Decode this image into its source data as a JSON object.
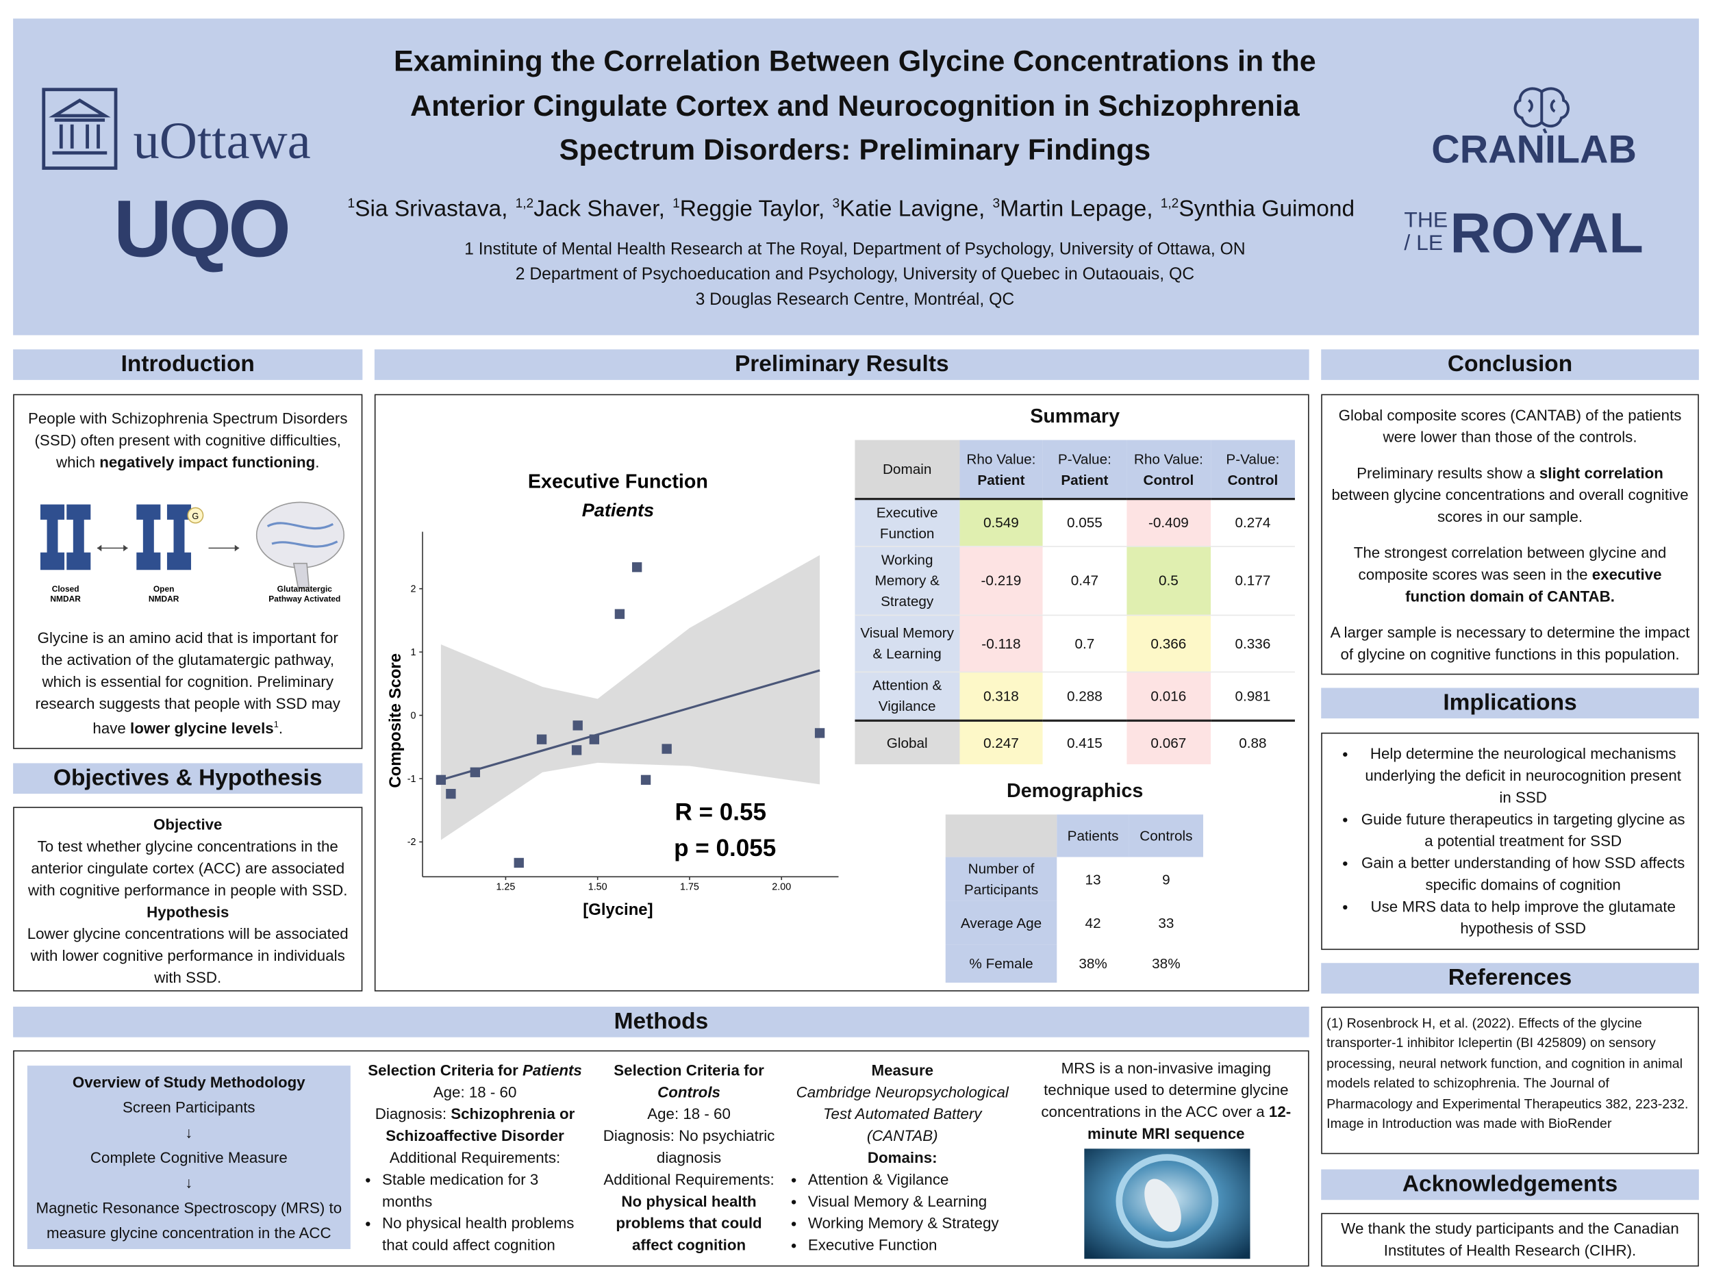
{
  "header": {
    "title_lines": [
      "Examining the Correlation Between Glycine Concentrations in the",
      "Anterior Cingulate Cortex and Neurocognition in Schizophrenia",
      "Spectrum Disorders: Preliminary Findings"
    ],
    "authors": [
      {
        "sup": "1",
        "name": "Sia Srivastava,"
      },
      {
        "sup": "1,2",
        "name": "Jack Shaver,"
      },
      {
        "sup": "1",
        "name": "Reggie Taylor,"
      },
      {
        "sup": "3",
        "name": "Katie Lavigne,"
      },
      {
        "sup": "3",
        "name": "Martin Lepage,"
      },
      {
        "sup": "1,2",
        "name": "Synthia Guimond"
      }
    ],
    "affiliations": [
      "1 Institute of Mental Health Research at The Royal, Department of Psychology, University of Ottawa, ON",
      "2 Department of Psychoeducation and Psychology, University of Quebec in Outaouais, QC",
      "3 Douglas Research Centre, Montréal, QC"
    ],
    "logos": {
      "uottawa": "uOttawa",
      "uqo": "UQO",
      "cranilab": "CRANILAB",
      "royal_prefix": [
        "THE",
        "/ LE"
      ],
      "royal": "ROYAL"
    }
  },
  "introduction": {
    "heading": "Introduction",
    "paragraph1": [
      "People with Schizophrenia Spectrum Disorders (SSD) often present with cognitive difficulties, which ",
      "negatively impact functioning",
      "."
    ],
    "figure_badge": "G",
    "figure_labels": [
      [
        "Closed",
        "NMDAR"
      ],
      [
        "Open",
        "NMDAR"
      ],
      [
        "Glutamatergic",
        "Pathway Activated"
      ]
    ],
    "paragraph2": [
      "Glycine is an amino acid that is important for the activation of the glutamatergic pathway, which is essential for cognition. Preliminary research suggests that people with SSD may have ",
      "lower glycine levels",
      "1",
      "."
    ]
  },
  "objectives": {
    "heading": "Objectives & Hypothesis",
    "objective_title": "Objective",
    "objective_text": "To test whether glycine concentrations in the anterior cingulate cortex (ACC) are associated with cognitive performance in people with SSD.",
    "hypothesis_title": "Hypothesis",
    "hypothesis_text": "Lower glycine concentrations will be associated with lower cognitive performance in individuals with SSD."
  },
  "results": {
    "heading": "Preliminary Results",
    "summary": {
      "title": "Summary",
      "header": [
        [
          "Domain"
        ],
        [
          "Rho Value:",
          "Patient"
        ],
        [
          "P-Value:",
          "Patient"
        ],
        [
          "Rho Value:",
          "Control"
        ],
        [
          "P-Value:",
          "Control"
        ]
      ],
      "rows": [
        [
          "Executive Function",
          "0.549",
          "0.055",
          "-0.409",
          "0.274"
        ],
        [
          "Working Memory & Strategy",
          "-0.219",
          "0.47",
          "0.5",
          "0.177"
        ],
        [
          "Visual Memory & Learning",
          "-0.118",
          "0.7",
          "0.366",
          "0.336"
        ],
        [
          "Attention & Vigilance",
          "0.318",
          "0.288",
          "0.016",
          "0.981"
        ],
        [
          "Global",
          "0.247",
          "0.415",
          "0.067",
          "0.88"
        ]
      ],
      "rho_colors": [
        [
          "#e0efb0",
          "#fde3e3"
        ],
        [
          "#fde3e3",
          "#e0efb0"
        ],
        [
          "#fde3e3",
          "#fdf8c8"
        ],
        [
          "#fdf8c8",
          "#fde3e3"
        ],
        [
          "#fdf8c8",
          "#fde3e3"
        ]
      ]
    },
    "demographics": {
      "title": "Demographics",
      "header": [
        "Patients",
        "Controls"
      ],
      "rows": [
        [
          "Number of Participants",
          "13",
          "9"
        ],
        [
          "Average Age",
          "42",
          "33"
        ],
        [
          "% Female",
          "38%",
          "38%"
        ]
      ]
    }
  },
  "chart_data": {
    "type": "scatter",
    "title": "Executive Function",
    "subtitle": "Patients",
    "x_label": "[Glycine]",
    "y_label": "Composite Score",
    "x": [
      1.074,
      1.101,
      1.167,
      1.286,
      1.348,
      1.446,
      1.443,
      1.491,
      1.56,
      1.607,
      1.631,
      1.688,
      2.104
    ],
    "y": [
      -1.02,
      -1.24,
      -0.9,
      -2.33,
      -0.38,
      -0.16,
      -0.55,
      -0.38,
      1.6,
      2.34,
      -1.02,
      -0.53,
      -0.28
    ],
    "color": "#4a5678",
    "xlim": [
      1.024,
      2.155
    ],
    "ylim": [
      -2.55,
      2.9
    ],
    "xticks": [
      1.25,
      {
        "value": 1.5,
        "label": "1.50"
      },
      1.75,
      {
        "value": 2,
        "label": "2.00"
      }
    ],
    "yticks": [
      -2,
      -1,
      0,
      1,
      2
    ],
    "fit": {
      "x": [
        1.074,
        2.104
      ],
      "y": [
        -1.02,
        0.71
      ],
      "color": "#4a5678"
    },
    "band": {
      "x": [
        1.074,
        1.35,
        1.5,
        1.75,
        2.104
      ],
      "upper": [
        1.12,
        0.45,
        0.26,
        1.38,
        2.53
      ],
      "lower": [
        -1.97,
        -0.9,
        -0.75,
        -0.8,
        -1.09
      ],
      "color": "#dcdcdc"
    },
    "annotations": [
      "R = 0.55",
      "p = 0.055"
    ]
  },
  "conclusion": {
    "heading": "Conclusion",
    "p1": "Global composite scores (CANTAB) of the patients were lower than those of the controls.",
    "p2": [
      "Preliminary results show a ",
      "slight correlation",
      " between glycine concentrations and overall cognitive scores in our sample."
    ],
    "p3": [
      "The strongest correlation between glycine and composite scores was seen in the ",
      "executive function domain of CANTAB."
    ],
    "p4": "A larger sample is necessary to determine the impact of glycine on cognitive functions in this population."
  },
  "implications": {
    "heading": "Implications",
    "bullets": [
      "Help determine the neurological mechanisms underlying the deficit in neurocognition present in SSD",
      "Guide future therapeutics in targeting glycine as a potential treatment for SSD",
      "Gain a better understanding of how SSD affects specific domains of cognition",
      "Use MRS data to help improve the glutamate hypothesis of SSD"
    ]
  },
  "references": {
    "heading": "References",
    "items": [
      "(1) Rosenbrock H, et al. (2022). Effects of the glycine transporter-1 inhibitor Iclepertin (BI 425809) on sensory processing, neural network function, and cognition in animal models related to schizophrenia. The Journal of Pharmacology and Experimental Therapeutics 382, 223-232.",
      "Image in Introduction was made with BioRender"
    ]
  },
  "acknowledgements": {
    "heading": "Acknowledgements",
    "text": "We thank the study participants and the Canadian Institutes of Health Research (CIHR)."
  },
  "methods": {
    "heading": "Methods",
    "overview": {
      "title": "Overview of Study Methodology",
      "steps": [
        "Screen Participants",
        "↓",
        "Complete Cognitive Measure",
        "↓",
        "Magnetic Resonance Spectroscopy (MRS) to measure glycine concentration in the ACC"
      ]
    },
    "patients": {
      "title": [
        "Selection Criteria for ",
        "Patients"
      ],
      "age": "Age: 18 - 60",
      "diagnosis": [
        "Diagnosis: ",
        "Schizophrenia or Schizoaffective Disorder"
      ],
      "additional": "Additional Requirements:",
      "bullets": [
        "Stable medication for 3 months",
        "No physical health problems that could affect cognition"
      ]
    },
    "controls": {
      "title": [
        "Selection Criteria for ",
        "Controls"
      ],
      "age": "Age: 18 - 60",
      "diagnosis": "Diagnosis: No psychiatric diagnosis",
      "additional": "Additional Requirements:",
      "requirement": "No physical health problems that could affect cognition"
    },
    "measure": {
      "title": "Measure",
      "battery": "Cambridge Neuropsychological Test Automated Battery (CANTAB)",
      "domains_label": "Domains:",
      "bullets": [
        "Attention & Vigilance",
        "Visual Memory & Learning",
        "Working Memory & Strategy",
        "Executive Function"
      ]
    },
    "mrs": [
      "MRS is a non-invasive imaging technique used to determine glycine concentrations in the ACC over a ",
      "12-minute MRI sequence"
    ]
  }
}
